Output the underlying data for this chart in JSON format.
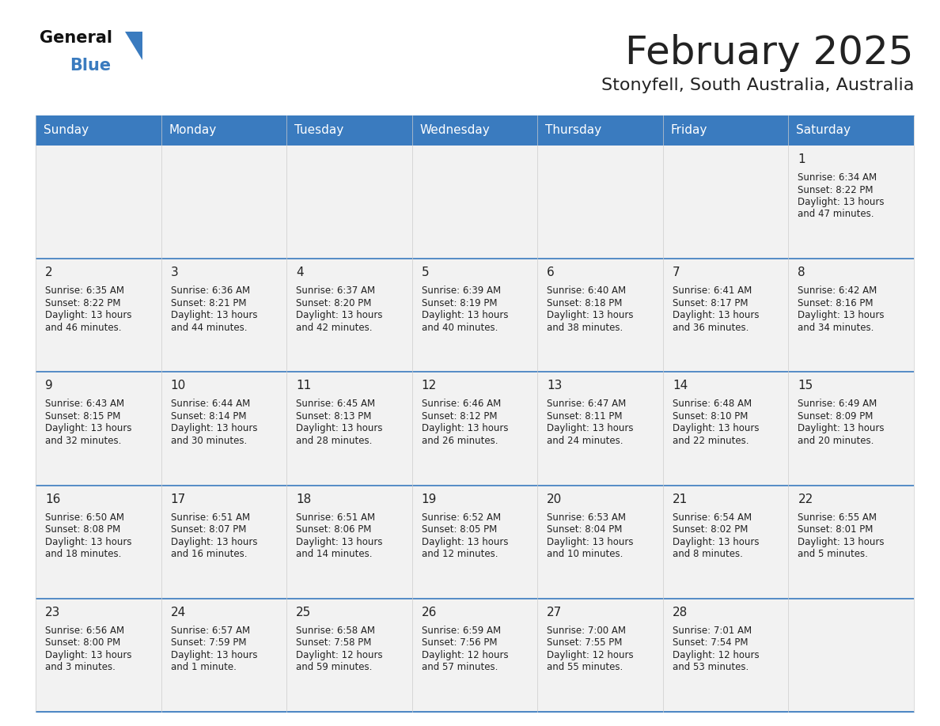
{
  "title": "February 2025",
  "subtitle": "Stonyfell, South Australia, Australia",
  "header_color": "#3a7bbf",
  "header_text_color": "#ffffff",
  "cell_bg_color": "#f2f2f2",
  "day_names": [
    "Sunday",
    "Monday",
    "Tuesday",
    "Wednesday",
    "Thursday",
    "Friday",
    "Saturday"
  ],
  "border_color": "#3a7bbf",
  "text_color": "#222222",
  "days": [
    {
      "day": 1,
      "col": 6,
      "row": 0,
      "sunrise": "6:34 AM",
      "sunset": "8:22 PM",
      "daylight": "13 hours and 47 minutes."
    },
    {
      "day": 2,
      "col": 0,
      "row": 1,
      "sunrise": "6:35 AM",
      "sunset": "8:22 PM",
      "daylight": "13 hours and 46 minutes."
    },
    {
      "day": 3,
      "col": 1,
      "row": 1,
      "sunrise": "6:36 AM",
      "sunset": "8:21 PM",
      "daylight": "13 hours and 44 minutes."
    },
    {
      "day": 4,
      "col": 2,
      "row": 1,
      "sunrise": "6:37 AM",
      "sunset": "8:20 PM",
      "daylight": "13 hours and 42 minutes."
    },
    {
      "day": 5,
      "col": 3,
      "row": 1,
      "sunrise": "6:39 AM",
      "sunset": "8:19 PM",
      "daylight": "13 hours and 40 minutes."
    },
    {
      "day": 6,
      "col": 4,
      "row": 1,
      "sunrise": "6:40 AM",
      "sunset": "8:18 PM",
      "daylight": "13 hours and 38 minutes."
    },
    {
      "day": 7,
      "col": 5,
      "row": 1,
      "sunrise": "6:41 AM",
      "sunset": "8:17 PM",
      "daylight": "13 hours and 36 minutes."
    },
    {
      "day": 8,
      "col": 6,
      "row": 1,
      "sunrise": "6:42 AM",
      "sunset": "8:16 PM",
      "daylight": "13 hours and 34 minutes."
    },
    {
      "day": 9,
      "col": 0,
      "row": 2,
      "sunrise": "6:43 AM",
      "sunset": "8:15 PM",
      "daylight": "13 hours and 32 minutes."
    },
    {
      "day": 10,
      "col": 1,
      "row": 2,
      "sunrise": "6:44 AM",
      "sunset": "8:14 PM",
      "daylight": "13 hours and 30 minutes."
    },
    {
      "day": 11,
      "col": 2,
      "row": 2,
      "sunrise": "6:45 AM",
      "sunset": "8:13 PM",
      "daylight": "13 hours and 28 minutes."
    },
    {
      "day": 12,
      "col": 3,
      "row": 2,
      "sunrise": "6:46 AM",
      "sunset": "8:12 PM",
      "daylight": "13 hours and 26 minutes."
    },
    {
      "day": 13,
      "col": 4,
      "row": 2,
      "sunrise": "6:47 AM",
      "sunset": "8:11 PM",
      "daylight": "13 hours and 24 minutes."
    },
    {
      "day": 14,
      "col": 5,
      "row": 2,
      "sunrise": "6:48 AM",
      "sunset": "8:10 PM",
      "daylight": "13 hours and 22 minutes."
    },
    {
      "day": 15,
      "col": 6,
      "row": 2,
      "sunrise": "6:49 AM",
      "sunset": "8:09 PM",
      "daylight": "13 hours and 20 minutes."
    },
    {
      "day": 16,
      "col": 0,
      "row": 3,
      "sunrise": "6:50 AM",
      "sunset": "8:08 PM",
      "daylight": "13 hours and 18 minutes."
    },
    {
      "day": 17,
      "col": 1,
      "row": 3,
      "sunrise": "6:51 AM",
      "sunset": "8:07 PM",
      "daylight": "13 hours and 16 minutes."
    },
    {
      "day": 18,
      "col": 2,
      "row": 3,
      "sunrise": "6:51 AM",
      "sunset": "8:06 PM",
      "daylight": "13 hours and 14 minutes."
    },
    {
      "day": 19,
      "col": 3,
      "row": 3,
      "sunrise": "6:52 AM",
      "sunset": "8:05 PM",
      "daylight": "13 hours and 12 minutes."
    },
    {
      "day": 20,
      "col": 4,
      "row": 3,
      "sunrise": "6:53 AM",
      "sunset": "8:04 PM",
      "daylight": "13 hours and 10 minutes."
    },
    {
      "day": 21,
      "col": 5,
      "row": 3,
      "sunrise": "6:54 AM",
      "sunset": "8:02 PM",
      "daylight": "13 hours and 8 minutes."
    },
    {
      "day": 22,
      "col": 6,
      "row": 3,
      "sunrise": "6:55 AM",
      "sunset": "8:01 PM",
      "daylight": "13 hours and 5 minutes."
    },
    {
      "day": 23,
      "col": 0,
      "row": 4,
      "sunrise": "6:56 AM",
      "sunset": "8:00 PM",
      "daylight": "13 hours and 3 minutes."
    },
    {
      "day": 24,
      "col": 1,
      "row": 4,
      "sunrise": "6:57 AM",
      "sunset": "7:59 PM",
      "daylight": "13 hours and 1 minute."
    },
    {
      "day": 25,
      "col": 2,
      "row": 4,
      "sunrise": "6:58 AM",
      "sunset": "7:58 PM",
      "daylight": "12 hours and 59 minutes."
    },
    {
      "day": 26,
      "col": 3,
      "row": 4,
      "sunrise": "6:59 AM",
      "sunset": "7:56 PM",
      "daylight": "12 hours and 57 minutes."
    },
    {
      "day": 27,
      "col": 4,
      "row": 4,
      "sunrise": "7:00 AM",
      "sunset": "7:55 PM",
      "daylight": "12 hours and 55 minutes."
    },
    {
      "day": 28,
      "col": 5,
      "row": 4,
      "sunrise": "7:01 AM",
      "sunset": "7:54 PM",
      "daylight": "12 hours and 53 minutes."
    }
  ],
  "num_rows": 5,
  "logo_text_general": "General",
  "logo_text_blue": "Blue",
  "logo_triangle_color": "#3a7bbf",
  "title_fontsize": 36,
  "subtitle_fontsize": 16,
  "dayname_fontsize": 11,
  "daynum_fontsize": 11,
  "info_fontsize": 8.5
}
